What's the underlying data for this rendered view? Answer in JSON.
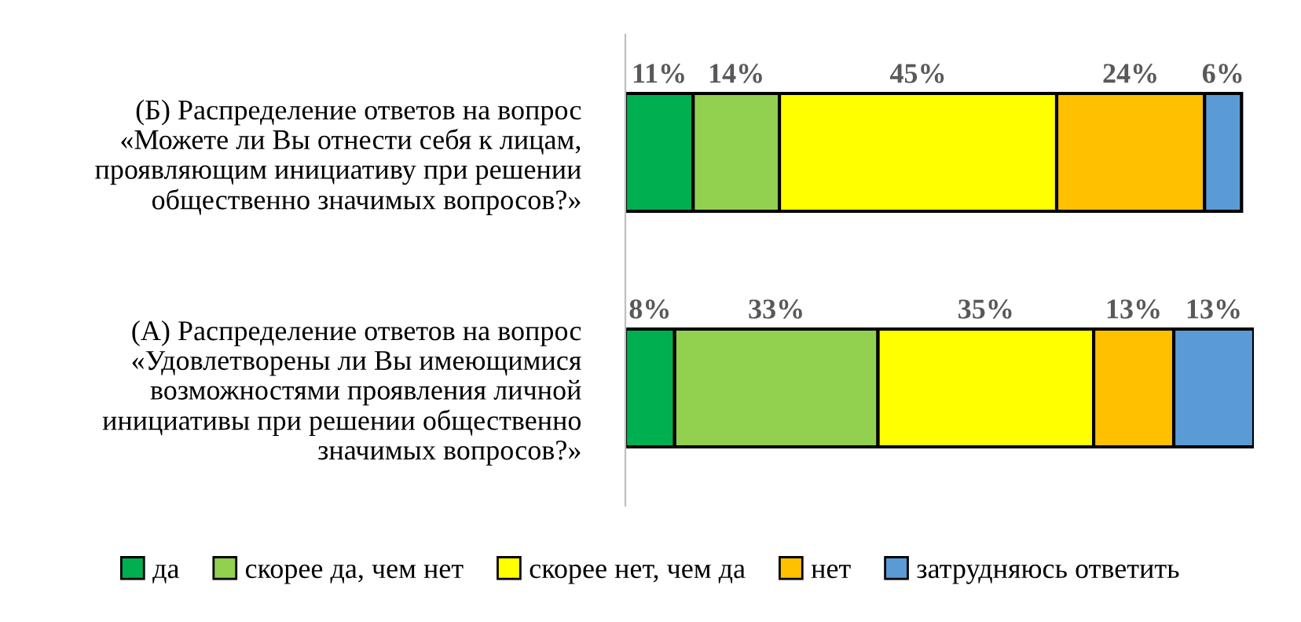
{
  "chart_data": {
    "type": "bar",
    "orientation": "horizontal",
    "stacked": true,
    "legend": "bottom",
    "grid": false,
    "tick_labels": "y",
    "categories": [
      "(Б) Распределение ответов на вопрос\n«Можете ли Вы отнести себя к лицам,\nпроявляющим инициативу при решении\nобщественно значимых вопросов?»",
      "(А) Распределение ответов на вопрос\n«Удовлетворены ли Вы имеющимися\nвозможностями проявления личной\nинициативы при решении общественно\nзначимых вопросов?»"
    ],
    "series": [
      {
        "name": "да",
        "color": "#00b050",
        "values": [
          11,
          8
        ],
        "value_labels": [
          "11%",
          "8%"
        ]
      },
      {
        "name": "скорее да, чем нет",
        "color": "#92d050",
        "values": [
          14,
          33
        ],
        "value_labels": [
          "14%",
          "33%"
        ]
      },
      {
        "name": "скорее нет, чем да",
        "color": "#ffff00",
        "values": [
          45,
          35
        ],
        "value_labels": [
          "45%",
          "35%"
        ]
      },
      {
        "name": "нет",
        "color": "#ffc000",
        "values": [
          24,
          13
        ],
        "value_labels": [
          "24%",
          "13%"
        ]
      },
      {
        "name": "затрудняюсь ответить",
        "color": "#5b9bd5",
        "values": [
          6,
          13
        ],
        "value_labels": [
          "6%",
          "13%"
        ]
      }
    ]
  }
}
